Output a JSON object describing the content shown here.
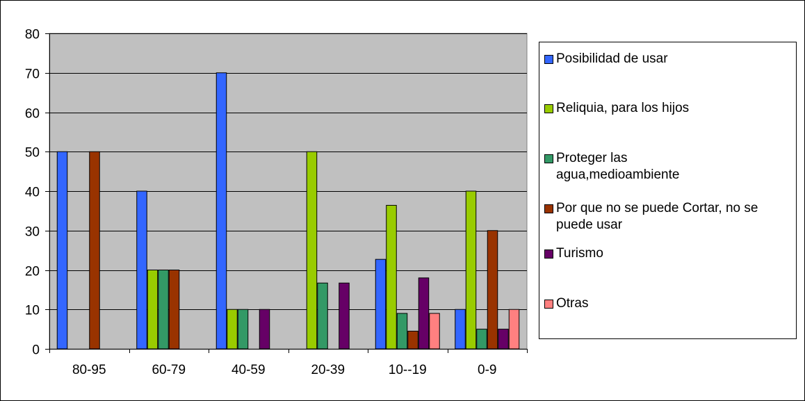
{
  "chart_data": {
    "type": "bar",
    "categories": [
      "80-95",
      "60-79",
      "40-59",
      "20-39",
      "10--19",
      "0-9"
    ],
    "ylim": [
      0,
      80
    ],
    "yticks": [
      "0",
      "10",
      "20",
      "30",
      "40",
      "50",
      "60",
      "70",
      "80"
    ],
    "grid": true,
    "legend_position": "right",
    "plot_background": "#c0c0c0",
    "series": [
      {
        "name": "Posibilidad de usar",
        "color": "#3366ff",
        "values": [
          50,
          40,
          70,
          0,
          22.7,
          10
        ]
      },
      {
        "name": "Reliquia, para los hijos",
        "color": "#99cc00",
        "values": [
          0,
          20,
          10,
          50,
          36.4,
          40
        ]
      },
      {
        "name": "Proteger las agua,medioambiente",
        "color": "#339966",
        "values": [
          0,
          20,
          10,
          16.7,
          9,
          5
        ]
      },
      {
        "name": "Por que no se puede Cortar, no se puede usar",
        "color": "#993300",
        "values": [
          50,
          20,
          0,
          0,
          4.5,
          30
        ]
      },
      {
        "name": "Turismo",
        "color": "#660066",
        "values": [
          0,
          0,
          10,
          16.7,
          18,
          5
        ]
      },
      {
        "name": "Otras",
        "color": "#ff8080",
        "values": [
          0,
          0,
          0,
          0,
          9,
          10
        ]
      }
    ]
  }
}
